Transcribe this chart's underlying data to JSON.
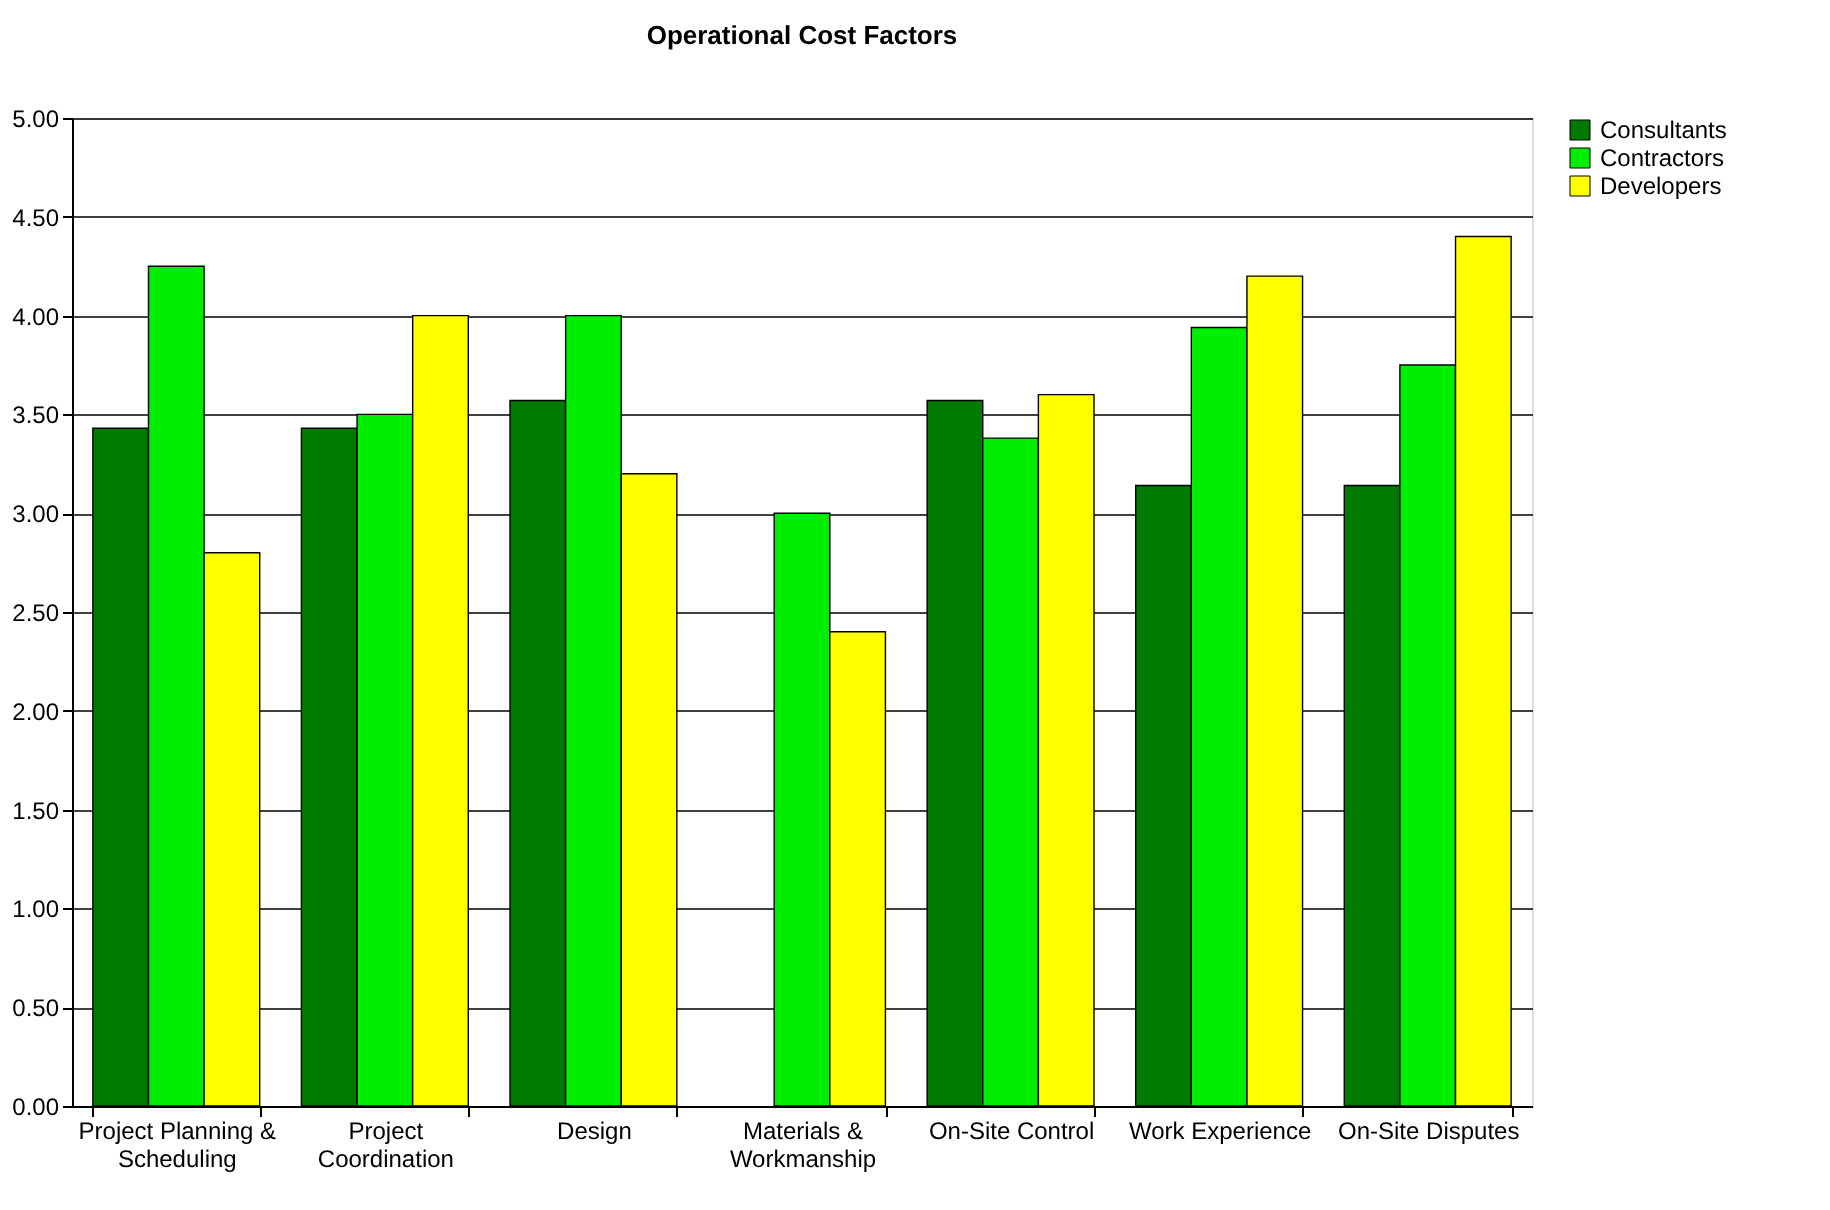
{
  "chart_data": {
    "type": "bar",
    "title": "Operational Cost Factors",
    "categories": [
      "Project Planning & Scheduling",
      "Project Coordination",
      "Design",
      "Materials & Workmanship",
      "On-Site Control",
      "Work Experience",
      "On-Site Disputes"
    ],
    "series": [
      {
        "name": "Consultants",
        "color": "#007a00",
        "values": [
          3.43,
          3.43,
          3.57,
          null,
          3.57,
          3.14,
          3.14
        ]
      },
      {
        "name": "Contractors",
        "color": "#00ee00",
        "values": [
          4.25,
          3.5,
          4.0,
          3.0,
          3.38,
          3.94,
          3.75
        ]
      },
      {
        "name": "Developers",
        "color": "#ffff00",
        "values": [
          2.8,
          4.0,
          3.2,
          2.4,
          3.6,
          4.2,
          4.4
        ]
      }
    ],
    "ylim": [
      0,
      5
    ],
    "yticks": [
      {
        "value": 0,
        "label": "0.00"
      },
      {
        "value": 0.5,
        "label": "0.50"
      },
      {
        "value": 1,
        "label": "1.00"
      },
      {
        "value": 1.5,
        "label": "1.50"
      },
      {
        "value": 2,
        "label": "2.00"
      },
      {
        "value": 2.5,
        "label": "2.50"
      },
      {
        "value": 3,
        "label": "3.00"
      },
      {
        "value": 3.5,
        "label": "3.50"
      },
      {
        "value": 4,
        "label": "4.00"
      },
      {
        "value": 4.5,
        "label": "4.50"
      },
      {
        "value": 5,
        "label": "5.00"
      }
    ],
    "grid": "y",
    "legend": "right"
  }
}
